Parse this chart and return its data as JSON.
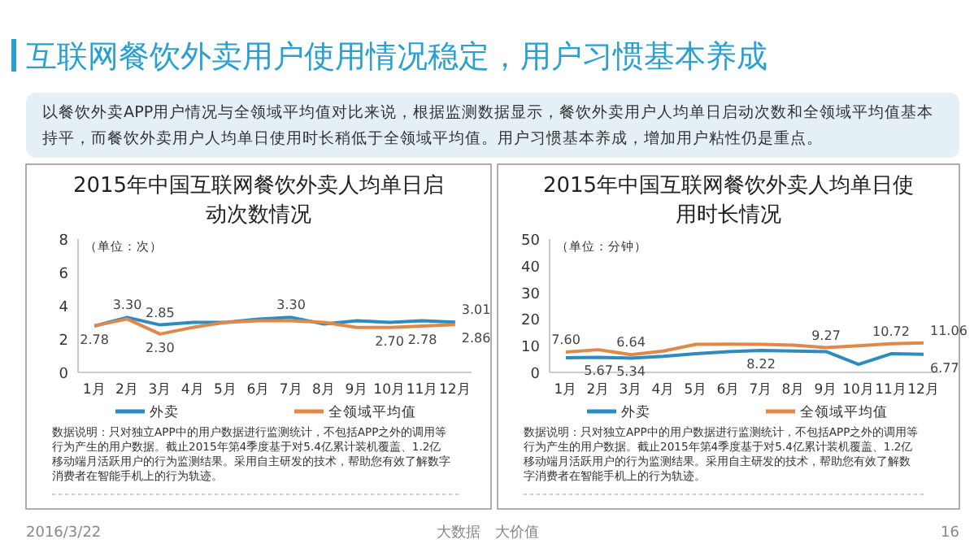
{
  "chart_data": [
    {
      "type": "line",
      "title": "2015年中国互联网餐饮外卖人均单日启动次数情况",
      "categories": [
        "1月",
        "2月",
        "3月",
        "4月",
        "5月",
        "6月",
        "7月",
        "8月",
        "9月",
        "10月",
        "11月",
        "12月"
      ],
      "series": [
        {
          "name": "外卖",
          "color": "#2e8bc0",
          "values": [
            2.78,
            3.3,
            2.85,
            3.0,
            3.0,
            3.2,
            3.3,
            2.9,
            3.1,
            3.0,
            3.1,
            3.01
          ],
          "value_labels": [
            "2.78",
            "3.30",
            "2.85",
            null,
            null,
            null,
            "3.30",
            null,
            null,
            null,
            null,
            "3.01"
          ]
        },
        {
          "name": "全领域平均值",
          "color": "#e0884a",
          "values": [
            2.8,
            3.2,
            2.3,
            2.7,
            3.0,
            3.1,
            3.1,
            3.0,
            2.7,
            2.7,
            2.78,
            2.86
          ],
          "value_labels": [
            null,
            null,
            "2.30",
            null,
            null,
            null,
            null,
            null,
            null,
            "2.70",
            "2.78",
            "2.86"
          ]
        }
      ],
      "ylim": [
        0,
        8
      ],
      "yticks": [
        0,
        2,
        4,
        6,
        8
      ],
      "legend": "bottom",
      "grid": false,
      "annotations": [
        "互联网餐饮外卖用户使用情况稳定，用户习惯基本养成",
        "以餐饮外卖APP用户情况与全领域平均值对比来说，根据监测数据显示，餐饮外卖用户人均单日启动次数和全领域平均值基本持平，而餐饮外卖用户人均单日使用时长稍低于全领域平均值。用户习惯基本养成，增加用户粘性仍是重点。",
        "（单位：次）",
        "数据说明：只对独立APP中的用户数据进行监测统计，不包括APP之外的调用等行为产生的用户数据。截止2015年第4季度基于对5.4亿累计装机覆盖、1.2亿移动端月活跃用户的行为监测结果。采用自主研发的技术，帮助您有效了解数字消费者在智能手机上的行为轨迹。",
        "2016/3/22",
        "大数据　大价值",
        "16"
      ]
    },
    {
      "type": "line",
      "title": "2015年中国互联网餐饮外卖人均单日使用时长情况",
      "categories": [
        "1月",
        "2月",
        "3月",
        "4月",
        "5月",
        "6月",
        "7月",
        "8月",
        "9月",
        "10月",
        "11月",
        "12月"
      ],
      "series": [
        {
          "name": "外卖",
          "color": "#2e8bc0",
          "values": [
            5.5,
            5.67,
            5.34,
            6.0,
            7.0,
            7.8,
            8.22,
            8.0,
            7.8,
            3.0,
            7.0,
            6.77
          ],
          "value_labels": [
            null,
            "5.67",
            "5.34",
            null,
            null,
            null,
            "8.22",
            null,
            null,
            null,
            null,
            "6.77"
          ]
        },
        {
          "name": "全领域平均值",
          "color": "#e0884a",
          "values": [
            7.6,
            8.5,
            6.64,
            8.0,
            10.5,
            10.6,
            10.5,
            10.2,
            9.27,
            10.0,
            10.72,
            11.06
          ],
          "value_labels": [
            "7.60",
            null,
            "6.64",
            null,
            null,
            null,
            null,
            null,
            "9.27",
            null,
            "10.72",
            "11.06"
          ]
        }
      ],
      "ylim": [
        0,
        50
      ],
      "yticks": [
        0,
        10,
        20,
        30,
        40,
        50
      ],
      "legend": "bottom",
      "grid": false,
      "annotations": [
        "（单位：分钟）",
        "数据说明：只对独立APP中的用户数据进行监测统计，不包括APP之外的调用等行为产生的用户数据。截止2015年第4季度基于对5.4亿累计装机覆盖、1.2亿移动端月活跃用户的行为监测结果。采用自主研发的技术，帮助您有效了解数字消费者在智能手机上的行为轨迹。"
      ]
    }
  ]
}
